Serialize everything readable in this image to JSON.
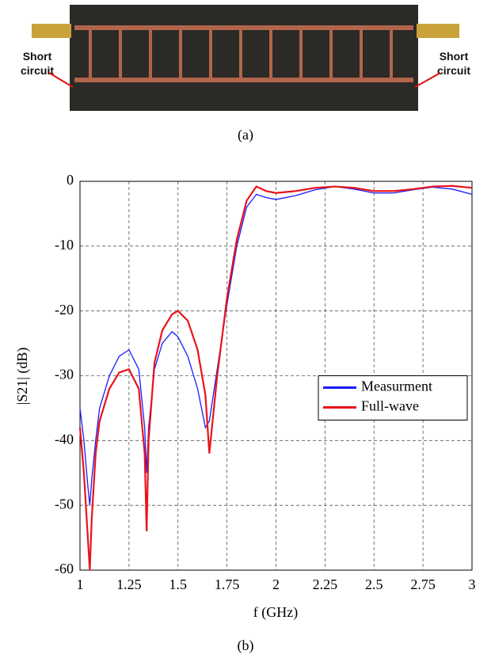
{
  "figure": {
    "photo_labels": [
      "Short circuit",
      "Short circuit"
    ],
    "captions": [
      "(a)",
      "(b)"
    ]
  },
  "chart_data": {
    "type": "line",
    "xlabel": "f (GHz)",
    "ylabel": "|S21| (dB)",
    "x": [
      1,
      1.02,
      1.04,
      1.05,
      1.06,
      1.08,
      1.1,
      1.15,
      1.2,
      1.25,
      1.3,
      1.33,
      1.34,
      1.35,
      1.38,
      1.42,
      1.47,
      1.5,
      1.55,
      1.6,
      1.64,
      1.66,
      1.7,
      1.75,
      1.8,
      1.85,
      1.9,
      1.95,
      2,
      2.1,
      2.2,
      2.3,
      2.4,
      2.5,
      2.6,
      2.7,
      2.8,
      2.9,
      3
    ],
    "series": [
      {
        "name": "Measurment",
        "color": "#1a1aff",
        "values": [
          -35,
          -40,
          -47,
          -50,
          -46,
          -40,
          -35,
          -30,
          -27,
          -26,
          -29,
          -38,
          -45,
          -38,
          -29,
          -25,
          -23.2,
          -24,
          -27,
          -32,
          -38,
          -37,
          -29,
          -19,
          -10,
          -4,
          -2,
          -2.5,
          -2.8,
          -2.2,
          -1.3,
          -0.8,
          -1.2,
          -1.8,
          -1.8,
          -1.3,
          -0.9,
          -1.2,
          -2
        ]
      },
      {
        "name": "Full-wave",
        "color": "#e8141b",
        "values": [
          -38,
          -45,
          -55,
          -60,
          -52,
          -42,
          -37,
          -32,
          -29.5,
          -29,
          -32,
          -42,
          -54,
          -40,
          -28,
          -23,
          -20.5,
          -20,
          -21.5,
          -26,
          -33,
          -42,
          -30,
          -18,
          -9,
          -3,
          -0.8,
          -1.5,
          -1.8,
          -1.5,
          -1,
          -0.8,
          -1,
          -1.5,
          -1.5,
          -1.2,
          -0.8,
          -0.7,
          -1
        ]
      }
    ],
    "xlim": [
      1,
      3
    ],
    "ylim": [
      -60,
      0
    ],
    "xticks": [
      1,
      1.25,
      1.5,
      1.75,
      2,
      2.25,
      2.5,
      2.75,
      3
    ],
    "yticks": [
      0,
      -10,
      -20,
      -30,
      -40,
      -50,
      -60
    ],
    "grid": true,
    "legend": "right"
  }
}
